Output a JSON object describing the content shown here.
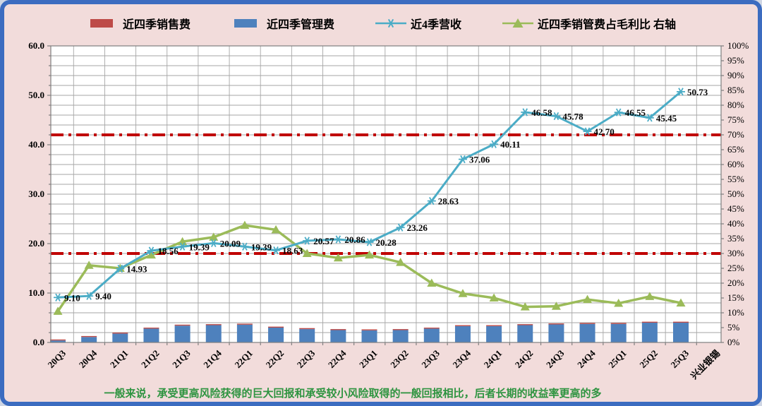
{
  "frame": {
    "background": "#f2dcdb",
    "border_color": "#3c6cc0",
    "plot_background": "#ffffff",
    "gridline_color": "#a6a6a6",
    "axis_color": "#7f7f7f"
  },
  "legend": [
    {
      "label": "近四季销售费",
      "swatch": "rect",
      "color": "#be4b48"
    },
    {
      "label": "近四季管理费",
      "swatch": "rect",
      "color": "#4e81bd"
    },
    {
      "label": "近4季营收",
      "swatch": "line-asterisk",
      "color": "#4bacc6"
    },
    {
      "label": "近四季销管费占毛利比 右轴",
      "swatch": "line-triangle",
      "color": "#9bbb59"
    }
  ],
  "caption": {
    "text": "一般来说，承受更高风险获得的巨大回报和承受较小风险取得的一般回报相比，后者长期的收益率更高的多",
    "color": "#2e9440"
  },
  "chart_data": {
    "type": "combo",
    "categories": [
      "20Q3",
      "20Q4",
      "21Q1",
      "21Q2",
      "21Q3",
      "21Q4",
      "22Q1",
      "22Q2",
      "22Q3",
      "22Q4",
      "23Q1",
      "23Q2",
      "23Q3",
      "23Q4",
      "24Q1",
      "24Q2",
      "24Q3",
      "24Q4",
      "25Q1",
      "25Q2",
      "25Q3"
    ],
    "x_axis_extra_label": "兴业银锡",
    "left_axis": {
      "min": 0,
      "max": 60,
      "tick_labels": [
        "0.0",
        "10.0",
        "20.0",
        "30.0",
        "40.0",
        "50.0",
        "60.0"
      ],
      "minor_gridline_step": 2
    },
    "right_axis": {
      "min": 0,
      "max": 100,
      "tick_step": 5,
      "suffix": "%"
    },
    "reference_lines": [
      {
        "axis": "left",
        "value": 42,
        "right_axis_equiv": "70%",
        "color": "#c00000",
        "style": "dash-dot"
      },
      {
        "axis": "left",
        "value": 18,
        "right_axis_equiv": "30%",
        "color": "#c00000",
        "style": "dash-dot"
      }
    ],
    "series": [
      {
        "name": "近四季销售费",
        "chart": "bar",
        "stack": "fees",
        "axis": "left",
        "color": "#be4b48",
        "values": [
          0.2,
          0.2,
          0.2,
          0.2,
          0.2,
          0.2,
          0.2,
          0.2,
          0.2,
          0.2,
          0.2,
          0.2,
          0.2,
          0.2,
          0.2,
          0.2,
          0.2,
          0.2,
          0.2,
          0.2,
          0.2
        ]
      },
      {
        "name": "近四季管理费",
        "chart": "bar",
        "stack": "fees",
        "axis": "left",
        "color": "#4e81bd",
        "values": [
          0.4,
          1.1,
          1.8,
          2.8,
          3.4,
          3.5,
          3.6,
          3.0,
          2.7,
          2.5,
          2.45,
          2.5,
          2.8,
          3.3,
          3.3,
          3.5,
          3.65,
          3.75,
          3.75,
          4.0,
          4.0
        ]
      },
      {
        "name": "近4季营收",
        "chart": "line",
        "marker": "asterisk",
        "axis": "left",
        "color": "#4bacc6",
        "values": [
          9.1,
          9.4,
          14.93,
          18.56,
          19.39,
          20.09,
          19.39,
          18.63,
          20.57,
          20.86,
          20.28,
          23.26,
          28.63,
          37.06,
          40.11,
          46.58,
          45.78,
          42.7,
          46.55,
          45.45,
          50.73
        ],
        "data_labels": [
          "9.10",
          "9.40",
          "14.93",
          "18.56",
          "19.39",
          "20.09",
          "19.39",
          "18.63",
          "20.57",
          "20.86",
          "20.28",
          "23.26",
          "28.63",
          "37.06",
          "40.11",
          "46.58",
          "45.78",
          "42.70",
          "46.55",
          "45.45",
          "50.73"
        ]
      },
      {
        "name": "近四季销管费占毛利比 右轴",
        "chart": "line",
        "marker": "triangle",
        "axis": "right",
        "color": "#9bbb59",
        "values": [
          10.5,
          26,
          25,
          29.5,
          34,
          35.5,
          39.5,
          38,
          30,
          28.5,
          29.5,
          27,
          20,
          16.5,
          15,
          12,
          12.2,
          14.5,
          13.2,
          15.5,
          13.3
        ]
      }
    ]
  }
}
